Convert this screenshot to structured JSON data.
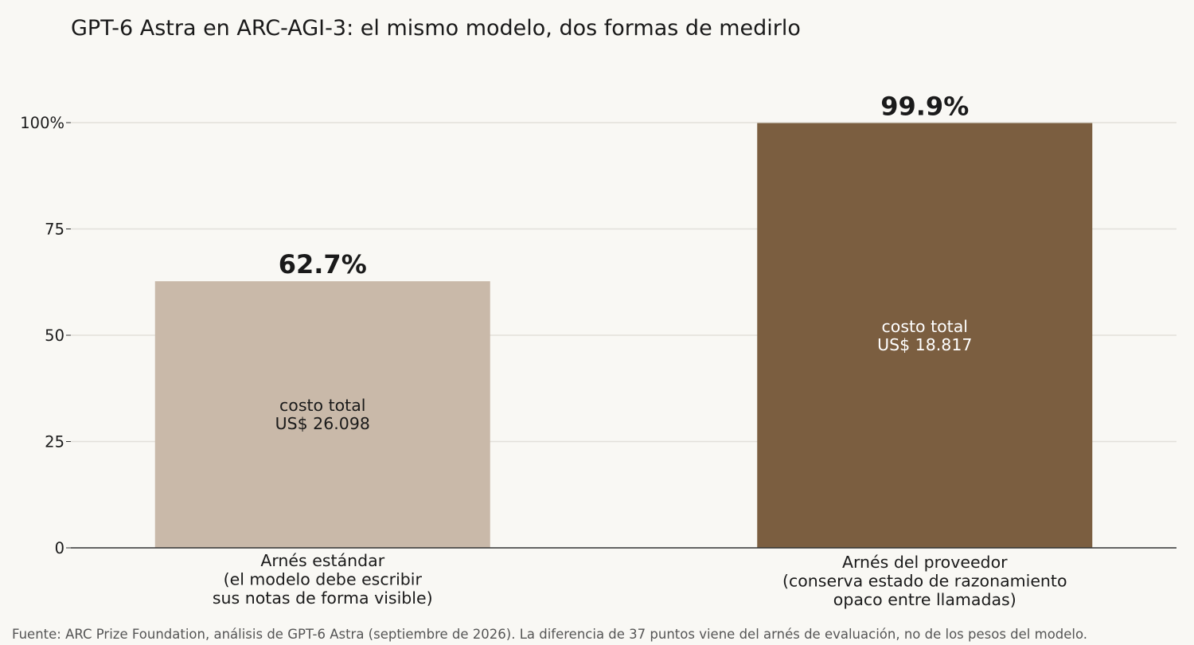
{
  "chart_data": {
    "type": "bar",
    "title": "GPT-6 Astra en ARC-AGI-3: el mismo modelo, dos formas de medirlo",
    "xlabel": "",
    "ylabel": "",
    "ylim": [
      0,
      100
    ],
    "yticks": [
      {
        "value": 0,
        "label": "0"
      },
      {
        "value": 25,
        "label": "25"
      },
      {
        "value": 50,
        "label": "50"
      },
      {
        "value": 75,
        "label": "75"
      },
      {
        "value": 100,
        "label": "100%"
      }
    ],
    "grid": true,
    "bars": [
      {
        "category": [
          "Arnés estándar",
          "(el modelo debe escribir",
          "sus notas de forma visible)"
        ],
        "value": 62.7,
        "value_label": "62.7%",
        "inner_label": [
          "costo total",
          "US$ 26.098"
        ],
        "color": "#c9b9a9",
        "inner_text_color": "#1a1a1a"
      },
      {
        "category": [
          "Arnés del proveedor",
          "(conserva estado de razonamiento",
          "opaco entre llamadas)"
        ],
        "value": 99.9,
        "value_label": "99.9%",
        "inner_label": [
          "costo total",
          "US$ 18.817"
        ],
        "color": "#7b5e40",
        "inner_text_color": "#ffffff"
      }
    ],
    "source": "Fuente: ARC Prize Foundation, análisis de GPT-6 Astra (septiembre de 2026). La diferencia de 37 puntos viene del arnés de evaluación, no de los pesos del modelo."
  },
  "colors": {
    "background": "#f9f8f4",
    "grid": "#e2e0da",
    "axis": "#333333",
    "text": "#1a1a1a",
    "source_text": "#555555"
  }
}
